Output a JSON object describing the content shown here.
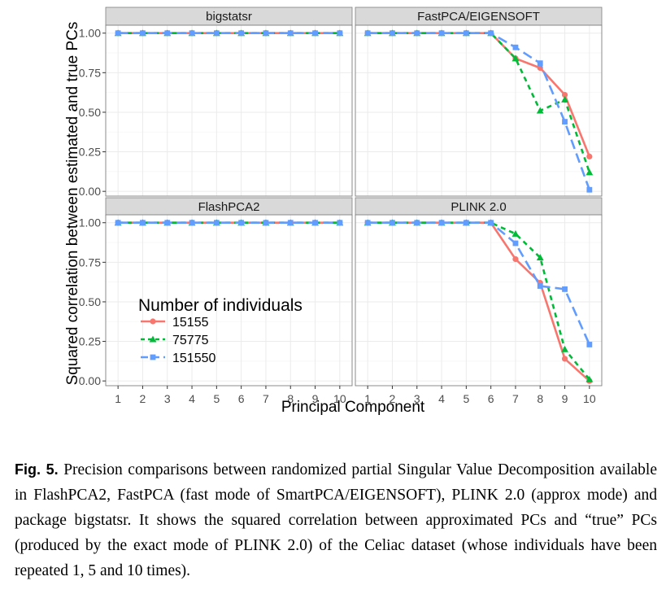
{
  "chart_data": {
    "type": "line",
    "ylabel": "Squared correlation between estimated and true PCs",
    "xlabel": "Principal Component",
    "x": [
      1,
      2,
      3,
      4,
      5,
      6,
      7,
      8,
      9,
      10
    ],
    "x_ticks": [
      "1",
      "2",
      "3",
      "4",
      "5",
      "6",
      "7",
      "8",
      "9",
      "10"
    ],
    "ylim": [
      -0.03,
      1.05
    ],
    "y_ticks": [
      "0.00",
      "0.25",
      "0.50",
      "0.75",
      "1.00"
    ],
    "grid": true,
    "legend": {
      "title": "Number of individuals",
      "placement": "bottom-left panel, upper-left",
      "entries": [
        "15155",
        "75775",
        "151550"
      ]
    },
    "colors": {
      "15155": "#f8766d",
      "75775": "#00ba38",
      "151550": "#619cff"
    },
    "panels": [
      {
        "title": "bigstatsr",
        "series": [
          {
            "name": "15155",
            "values": [
              1,
              1,
              1,
              1,
              1,
              1,
              1,
              1,
              1,
              1
            ]
          },
          {
            "name": "75775",
            "values": [
              1,
              1,
              1,
              1,
              1,
              1,
              1,
              1,
              1,
              1
            ]
          },
          {
            "name": "151550",
            "values": [
              1,
              1,
              1,
              1,
              1,
              1,
              1,
              1,
              1,
              1
            ]
          }
        ]
      },
      {
        "title": "FastPCA/EIGENSOFT",
        "series": [
          {
            "name": "15155",
            "values": [
              1,
              1,
              1,
              1,
              1,
              1,
              0.84,
              0.78,
              0.61,
              0.22
            ]
          },
          {
            "name": "75775",
            "values": [
              1,
              1,
              1,
              1,
              1,
              1,
              0.84,
              0.51,
              0.58,
              0.12
            ]
          },
          {
            "name": "151550",
            "values": [
              1,
              1,
              1,
              1,
              1,
              1,
              0.91,
              0.81,
              0.44,
              0.01
            ]
          }
        ]
      },
      {
        "title": "FlashPCA2",
        "series": [
          {
            "name": "15155",
            "values": [
              1,
              1,
              1,
              1,
              1,
              1,
              1,
              1,
              1,
              1
            ]
          },
          {
            "name": "75775",
            "values": [
              1,
              1,
              1,
              1,
              1,
              1,
              1,
              1,
              1,
              1
            ]
          },
          {
            "name": "151550",
            "values": [
              1,
              1,
              1,
              1,
              1,
              1,
              1,
              1,
              1,
              1
            ]
          }
        ]
      },
      {
        "title": "PLINK 2.0",
        "series": [
          {
            "name": "15155",
            "values": [
              1,
              1,
              1,
              1,
              1,
              1,
              0.77,
              0.62,
              0.14,
              0.0
            ]
          },
          {
            "name": "75775",
            "values": [
              1,
              1,
              1,
              1,
              1,
              1,
              0.93,
              0.78,
              0.2,
              0.01
            ]
          },
          {
            "name": "151550",
            "values": [
              1,
              1,
              1,
              1,
              1,
              1,
              0.87,
              0.6,
              0.58,
              0.23
            ]
          }
        ]
      }
    ]
  },
  "caption": {
    "label": "Fig. 5.",
    "text": "Precision comparisons between randomized partial Singular Value Decomposition available in FlashPCA2, FastPCA (fast mode of SmartPCA/EIGENSOFT), PLINK 2.0 (approx mode) and package bigstatsr. It shows the squared correlation between approximated PCs and “true” PCs (produced by the exact mode of PLINK 2.0) of the Celiac dataset (whose individuals have been repeated 1, 5 and 10 times)."
  }
}
